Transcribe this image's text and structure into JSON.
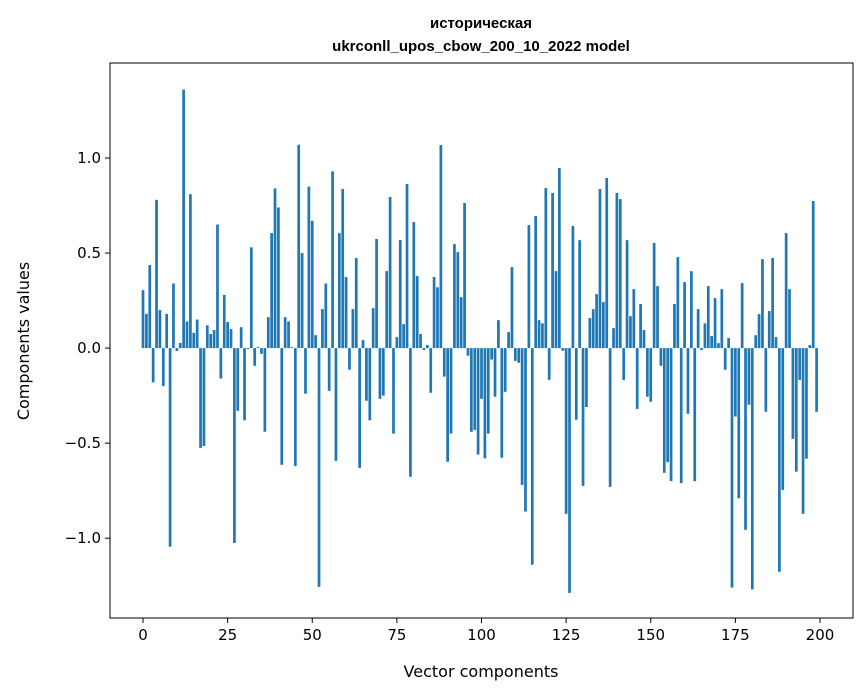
{
  "chart_data": {
    "type": "bar",
    "title_lines": [
      "историческая",
      "ukrconll_upos_cbow_200_10_2022 model"
    ],
    "xlabel": "Vector components",
    "ylabel": "Components values",
    "xlim": [
      -9.75,
      209.75
    ],
    "ylim": [
      -1.42,
      1.5
    ],
    "xticks": [
      0,
      25,
      50,
      75,
      100,
      125,
      150,
      175,
      200
    ],
    "xtick_labels": [
      "0",
      "25",
      "50",
      "75",
      "100",
      "125",
      "150",
      "175",
      "200"
    ],
    "yticks": [
      -1.0,
      -0.5,
      0.0,
      0.5,
      1.0
    ],
    "ytick_labels": [
      "−1.0",
      "−0.5",
      "0.0",
      "0.5",
      "1.0"
    ],
    "grid": false,
    "bar_color": "#1f77b4",
    "values": [
      0.305,
      0.18,
      0.437,
      -0.18,
      0.78,
      0.2,
      -0.2,
      0.18,
      -1.045,
      0.34,
      -0.015,
      0.027,
      1.36,
      0.14,
      0.81,
      0.08,
      0.15,
      -0.525,
      -0.515,
      0.12,
      0.074,
      0.095,
      0.65,
      -0.16,
      0.28,
      0.137,
      0.1,
      -1.025,
      -0.33,
      0.11,
      -0.38,
      -0.005,
      0.53,
      -0.093,
      0.005,
      -0.03,
      -0.44,
      0.163,
      0.605,
      0.84,
      0.74,
      -0.614,
      0.163,
      0.14,
      0.005,
      -0.62,
      1.07,
      0.5,
      -0.24,
      0.85,
      0.67,
      0.068,
      -1.256,
      0.205,
      0.34,
      -0.225,
      0.93,
      -0.593,
      0.605,
      0.837,
      0.374,
      -0.114,
      0.205,
      0.474,
      -0.63,
      0.042,
      -0.277,
      -0.38,
      0.21,
      0.574,
      -0.267,
      -0.25,
      0.405,
      0.795,
      -0.45,
      0.058,
      0.568,
      0.126,
      0.863,
      -0.677,
      0.663,
      0.379,
      0.074,
      -0.01,
      0.016,
      -0.235,
      0.374,
      0.32,
      1.068,
      -0.15,
      -0.598,
      -0.45,
      0.547,
      0.505,
      0.268,
      0.763,
      -0.04,
      -0.44,
      -0.43,
      -0.56,
      -0.267,
      -0.58,
      -0.45,
      -0.06,
      -0.256,
      0.147,
      -0.577,
      -0.23,
      0.084,
      0.426,
      -0.067,
      -0.077,
      -0.72,
      -0.86,
      0.647,
      -1.14,
      0.695,
      0.147,
      0.13,
      0.842,
      -0.167,
      0.816,
      0.405,
      0.947,
      -0.014,
      -0.872,
      -1.288,
      0.642,
      -0.377,
      0.568,
      -0.725,
      -0.31,
      0.158,
      0.205,
      0.284,
      0.837,
      0.242,
      0.895,
      -0.73,
      0.105,
      0.816,
      0.784,
      -0.167,
      0.568,
      0.168,
      0.31,
      -0.32,
      0.232,
      0.095,
      -0.256,
      -0.282,
      0.553,
      0.326,
      -0.093,
      -0.656,
      -0.6,
      -0.7,
      0.232,
      0.479,
      -0.71,
      0.347,
      -0.346,
      0.405,
      -0.7,
      0.205,
      -0.01,
      0.13,
      0.326,
      0.063,
      0.263,
      0.026,
      0.31,
      -0.114,
      0.053,
      -1.26,
      -0.36,
      -0.79,
      0.342,
      -0.956,
      -0.298,
      -1.27,
      0.068,
      0.179,
      0.468,
      -0.335,
      0.195,
      0.474,
      0.058,
      -1.177,
      -0.746,
      0.605,
      0.31,
      -0.477,
      -0.65,
      -0.167,
      -0.872,
      -0.582,
      0.016,
      0.774,
      -0.335
    ]
  }
}
